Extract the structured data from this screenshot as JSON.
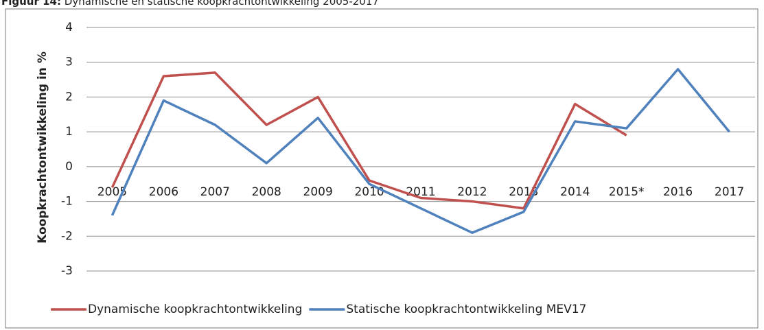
{
  "chart_data": {
    "type": "line",
    "title_prefix": "Figuur 14:",
    "title": "Dynamische en statische koopkrachtontwikkeling 2005-2017",
    "y_label": "Koopkrachtontwikkeling in %",
    "categories": [
      "2005",
      "2006",
      "2007",
      "2008",
      "2009",
      "2010",
      "2011",
      "2012",
      "2013",
      "2014",
      "2015*",
      "2016",
      "2017"
    ],
    "series": [
      {
        "name": "Dynamische koopkrachtontwikkeling",
        "color": "#c0504d",
        "values": [
          -0.6,
          2.6,
          2.7,
          1.2,
          2.0,
          -0.4,
          -0.9,
          -1.0,
          -1.2,
          1.8,
          0.9,
          null,
          null
        ]
      },
      {
        "name": "Statische koopkrachtontwikkeling MEV17",
        "color": "#4f81bd",
        "values": [
          -1.4,
          1.9,
          1.2,
          0.1,
          1.4,
          -0.5,
          -1.2,
          -1.9,
          -1.3,
          1.3,
          1.1,
          2.8,
          1.0
        ]
      }
    ],
    "ylim": [
      -3,
      4
    ],
    "yticks": [
      -3,
      -2,
      -1,
      0,
      1,
      2,
      3,
      4
    ],
    "grid": true,
    "legend": "bottom"
  }
}
